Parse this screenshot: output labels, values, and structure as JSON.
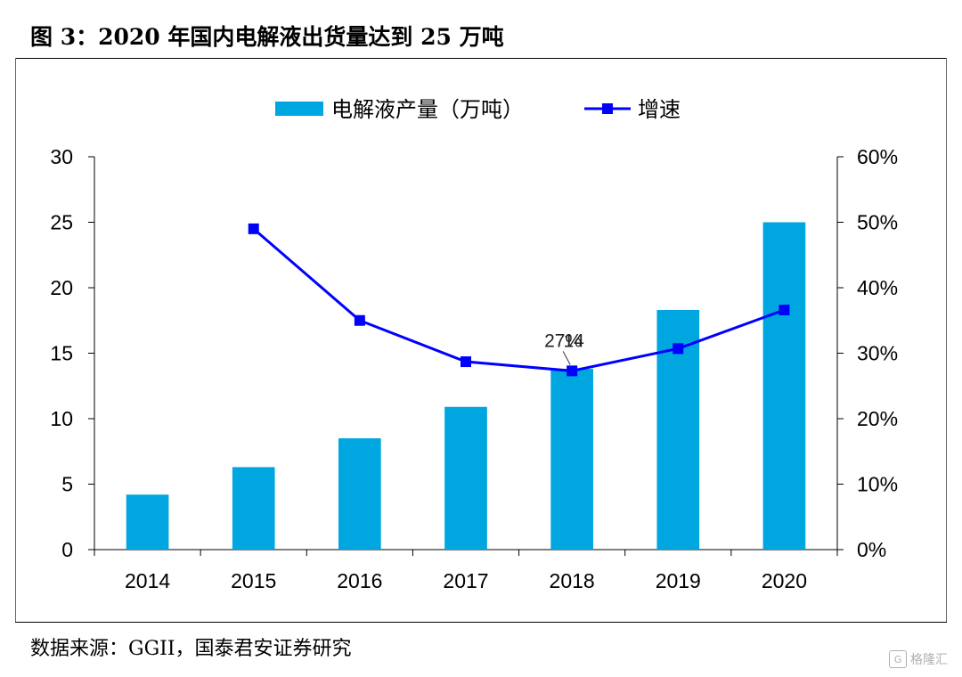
{
  "figure": {
    "title": "图 3：2020 年国内电解液出货量达到 25 万吨",
    "source": "数据来源：GGII，国泰君安证券研究",
    "watermark": "格隆汇"
  },
  "colors": {
    "bar": "#00a6e0",
    "line": "#0000ff",
    "axis": "#000000"
  },
  "chart_data": {
    "type": "bar",
    "categories": [
      "2014",
      "2015",
      "2016",
      "2017",
      "2018",
      "2019",
      "2020"
    ],
    "series": [
      {
        "name": "电解液产量（万吨）",
        "type": "bar",
        "axis": "left",
        "values": [
          4.2,
          6.3,
          8.5,
          10.9,
          13.8,
          18.3,
          25.0
        ]
      },
      {
        "name": "增速",
        "type": "line",
        "axis": "right",
        "values": [
          null,
          49,
          35,
          28.7,
          27.3,
          30.7,
          36.6
        ]
      }
    ],
    "y_left": {
      "min": 0,
      "max": 30,
      "ticks": [
        0,
        5,
        10,
        15,
        20,
        25,
        30
      ]
    },
    "y_right": {
      "min": 0,
      "max": 60,
      "ticks": [
        "0%",
        "10%",
        "20%",
        "30%",
        "40%",
        "50%",
        "60%"
      ]
    },
    "annotations": [
      {
        "category": "2018",
        "texts": [
          "27%",
          "14"
        ]
      }
    ],
    "legend_position": "top-center"
  }
}
